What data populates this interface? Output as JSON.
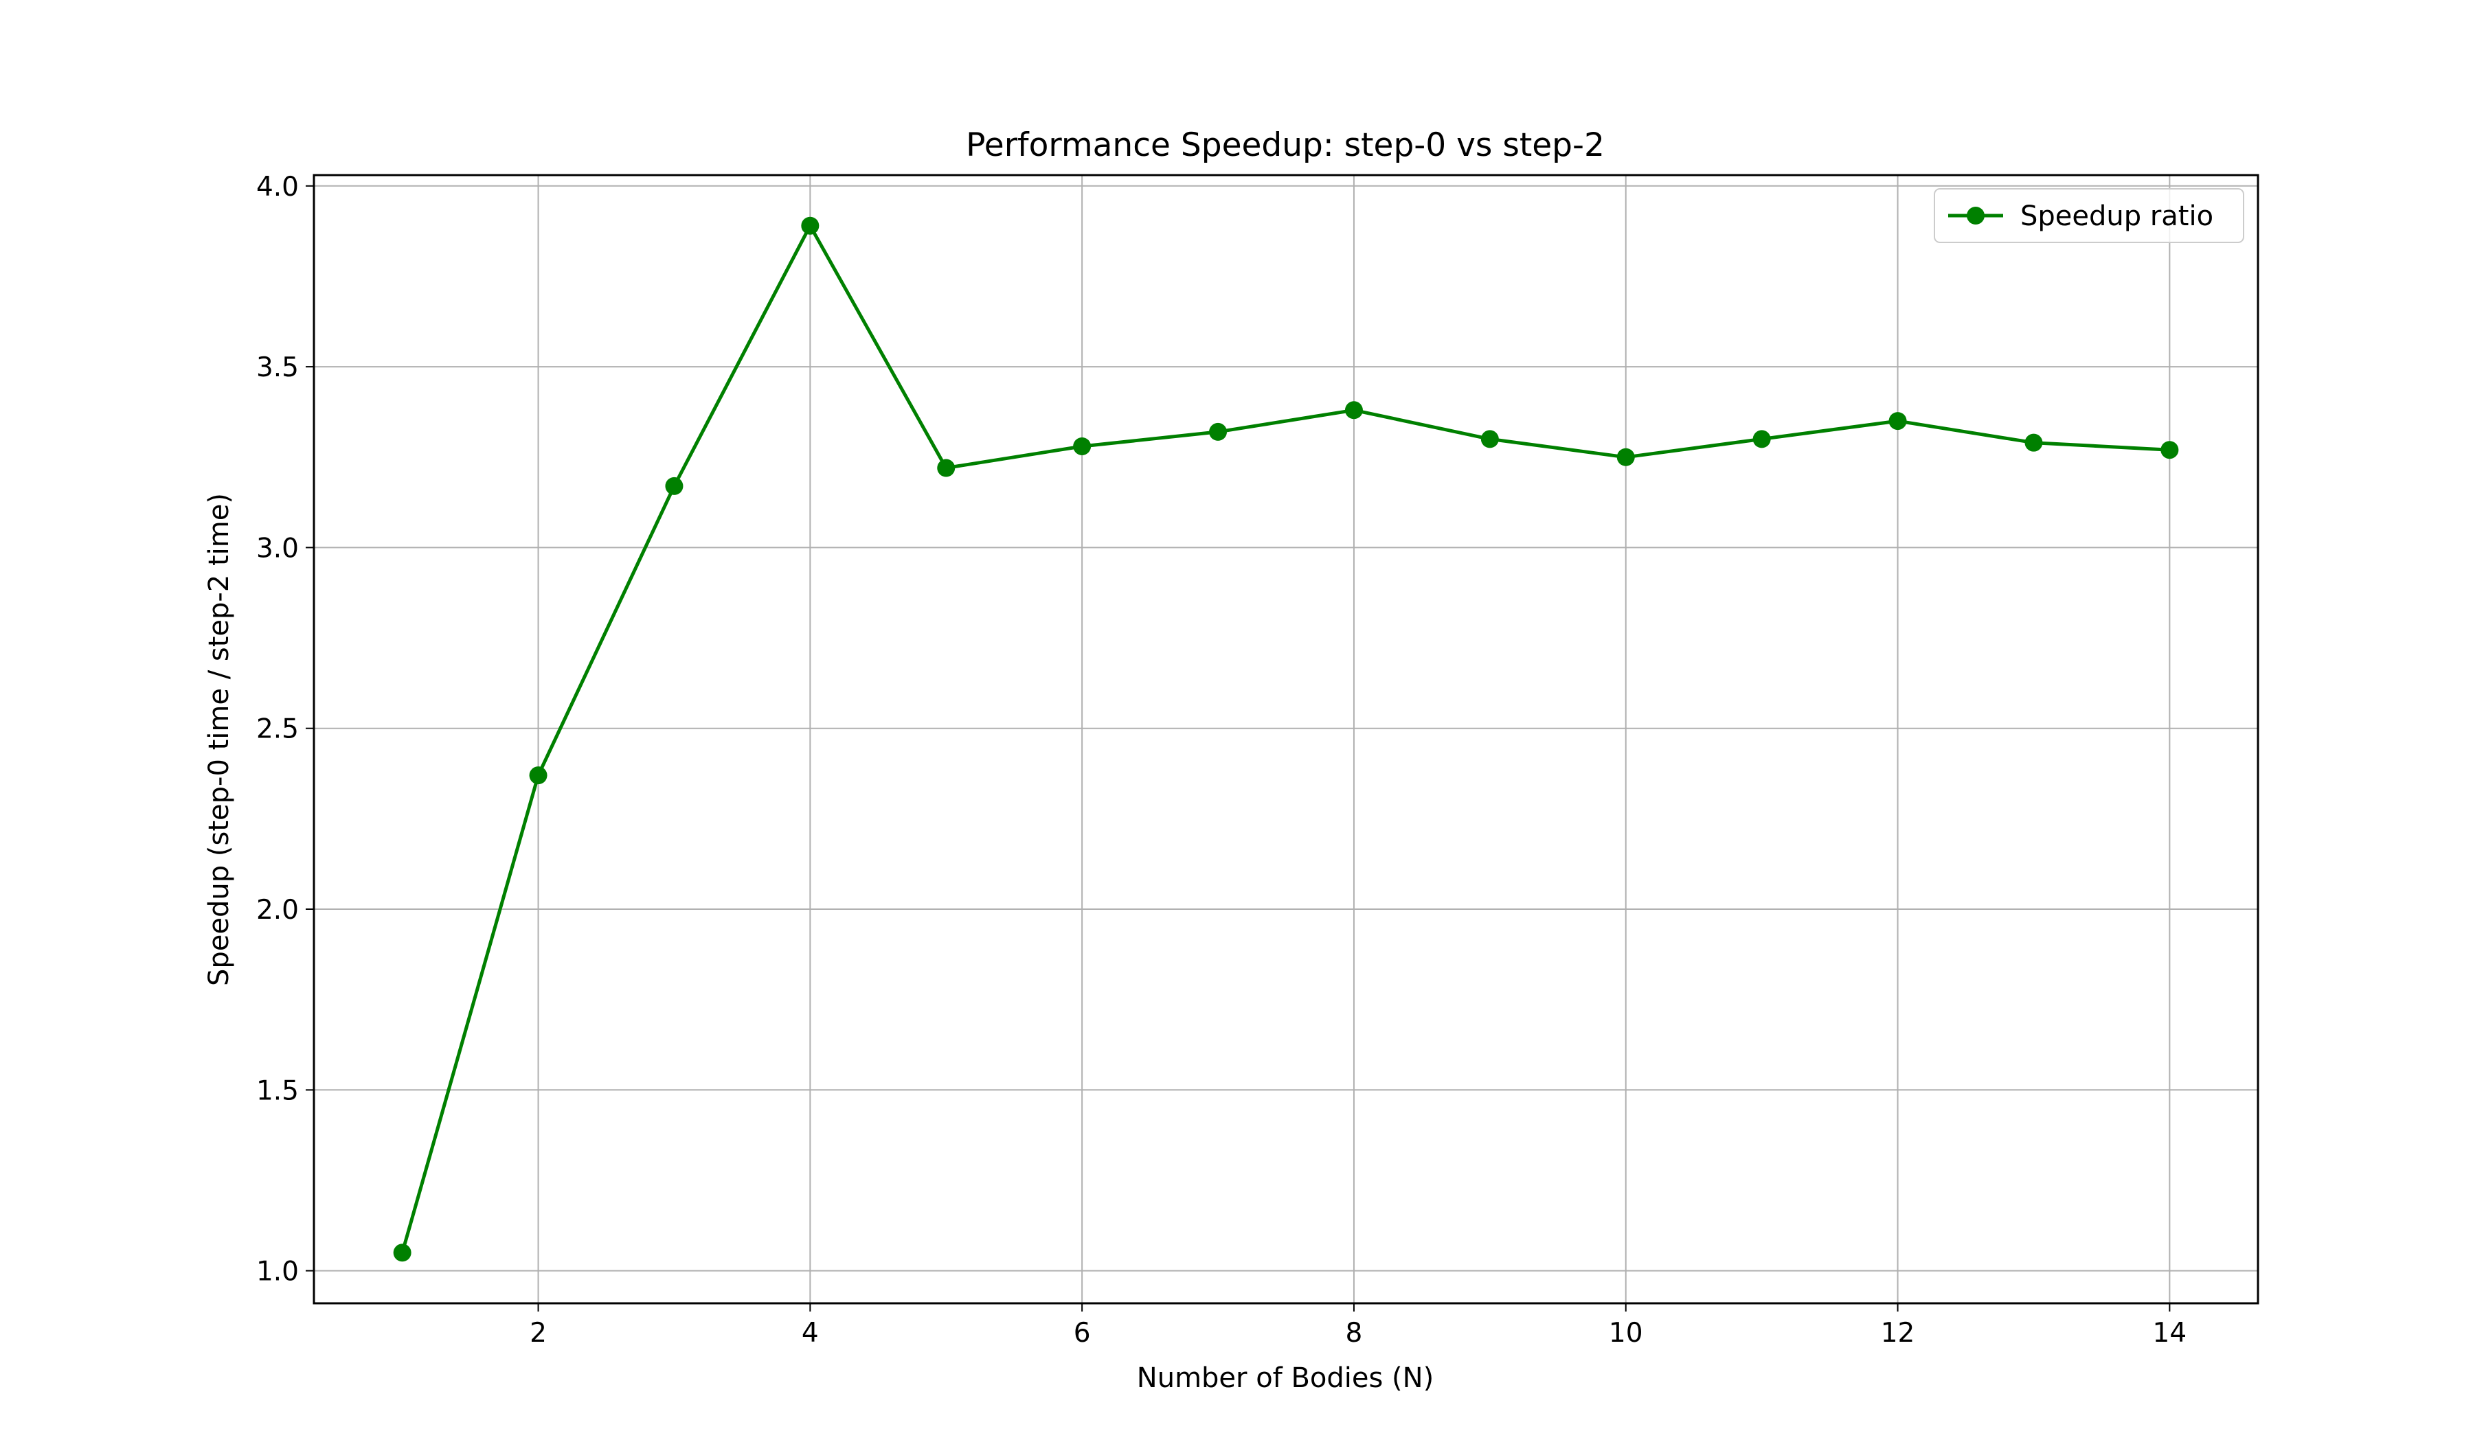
{
  "chart_data": {
    "type": "line",
    "title": "Performance Speedup: step-0 vs step-2",
    "xlabel": "Number of Bodies (N)",
    "ylabel": "Speedup (step-0 time / step-2 time)",
    "x": [
      1,
      2,
      3,
      4,
      5,
      6,
      7,
      8,
      9,
      10,
      11,
      12,
      13,
      14
    ],
    "series": [
      {
        "name": "Speedup ratio",
        "color": "#008000",
        "marker": "circle",
        "values": [
          1.05,
          2.37,
          3.17,
          3.89,
          3.22,
          3.28,
          3.32,
          3.38,
          3.3,
          3.25,
          3.3,
          3.35,
          3.29,
          3.27
        ]
      }
    ],
    "xlim": [
      0.35,
      14.65
    ],
    "ylim": [
      0.91,
      4.03
    ],
    "xticks": [
      2,
      4,
      6,
      8,
      10,
      12,
      14
    ],
    "xtick_labels": [
      "2",
      "4",
      "6",
      "8",
      "10",
      "12",
      "14"
    ],
    "yticks": [
      1.0,
      1.5,
      2.0,
      2.5,
      3.0,
      3.5,
      4.0
    ],
    "ytick_labels": [
      "1.0",
      "1.5",
      "2.0",
      "2.5",
      "3.0",
      "3.5",
      "4.0"
    ],
    "grid": true,
    "legend_position": "top-right"
  }
}
